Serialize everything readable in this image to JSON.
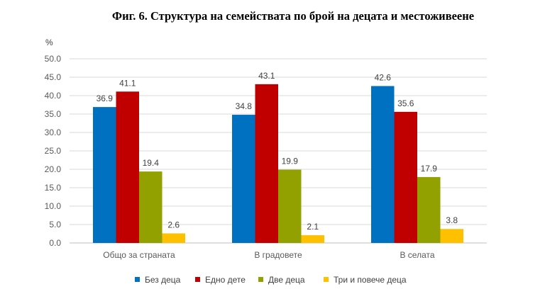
{
  "chart_data": {
    "type": "bar",
    "title": "Фиг. 6. Структура на семействата по брой на децата и местоживеене",
    "ylabel": "%",
    "xlabel": "",
    "ylim": [
      0,
      50
    ],
    "yticks": [
      "0.0",
      "5.0",
      "10.0",
      "15.0",
      "20.0",
      "25.0",
      "30.0",
      "35.0",
      "40.0",
      "45.0",
      "50.0"
    ],
    "categories": [
      "Общо за страната",
      "В градовете",
      "В селата"
    ],
    "series": [
      {
        "name": "Без деца",
        "color": "#0070C0",
        "values": [
          36.9,
          34.8,
          42.6
        ],
        "labels": [
          "36.9",
          "34.8",
          "42.6"
        ]
      },
      {
        "name": "Едно дете",
        "color": "#C00000",
        "values": [
          41.1,
          43.1,
          35.6
        ],
        "labels": [
          "41.1",
          "43.1",
          "35.6"
        ]
      },
      {
        "name": "Две деца",
        "color": "#92A100",
        "values": [
          19.4,
          19.9,
          17.9
        ],
        "labels": [
          "19.4",
          "19.9",
          "17.9"
        ]
      },
      {
        "name": "Три и повече деца",
        "color": "#FFC000",
        "values": [
          2.6,
          2.1,
          3.8
        ],
        "labels": [
          "2.6",
          "2.1",
          "3.8"
        ]
      }
    ],
    "grid": true,
    "legend": "bottom"
  }
}
